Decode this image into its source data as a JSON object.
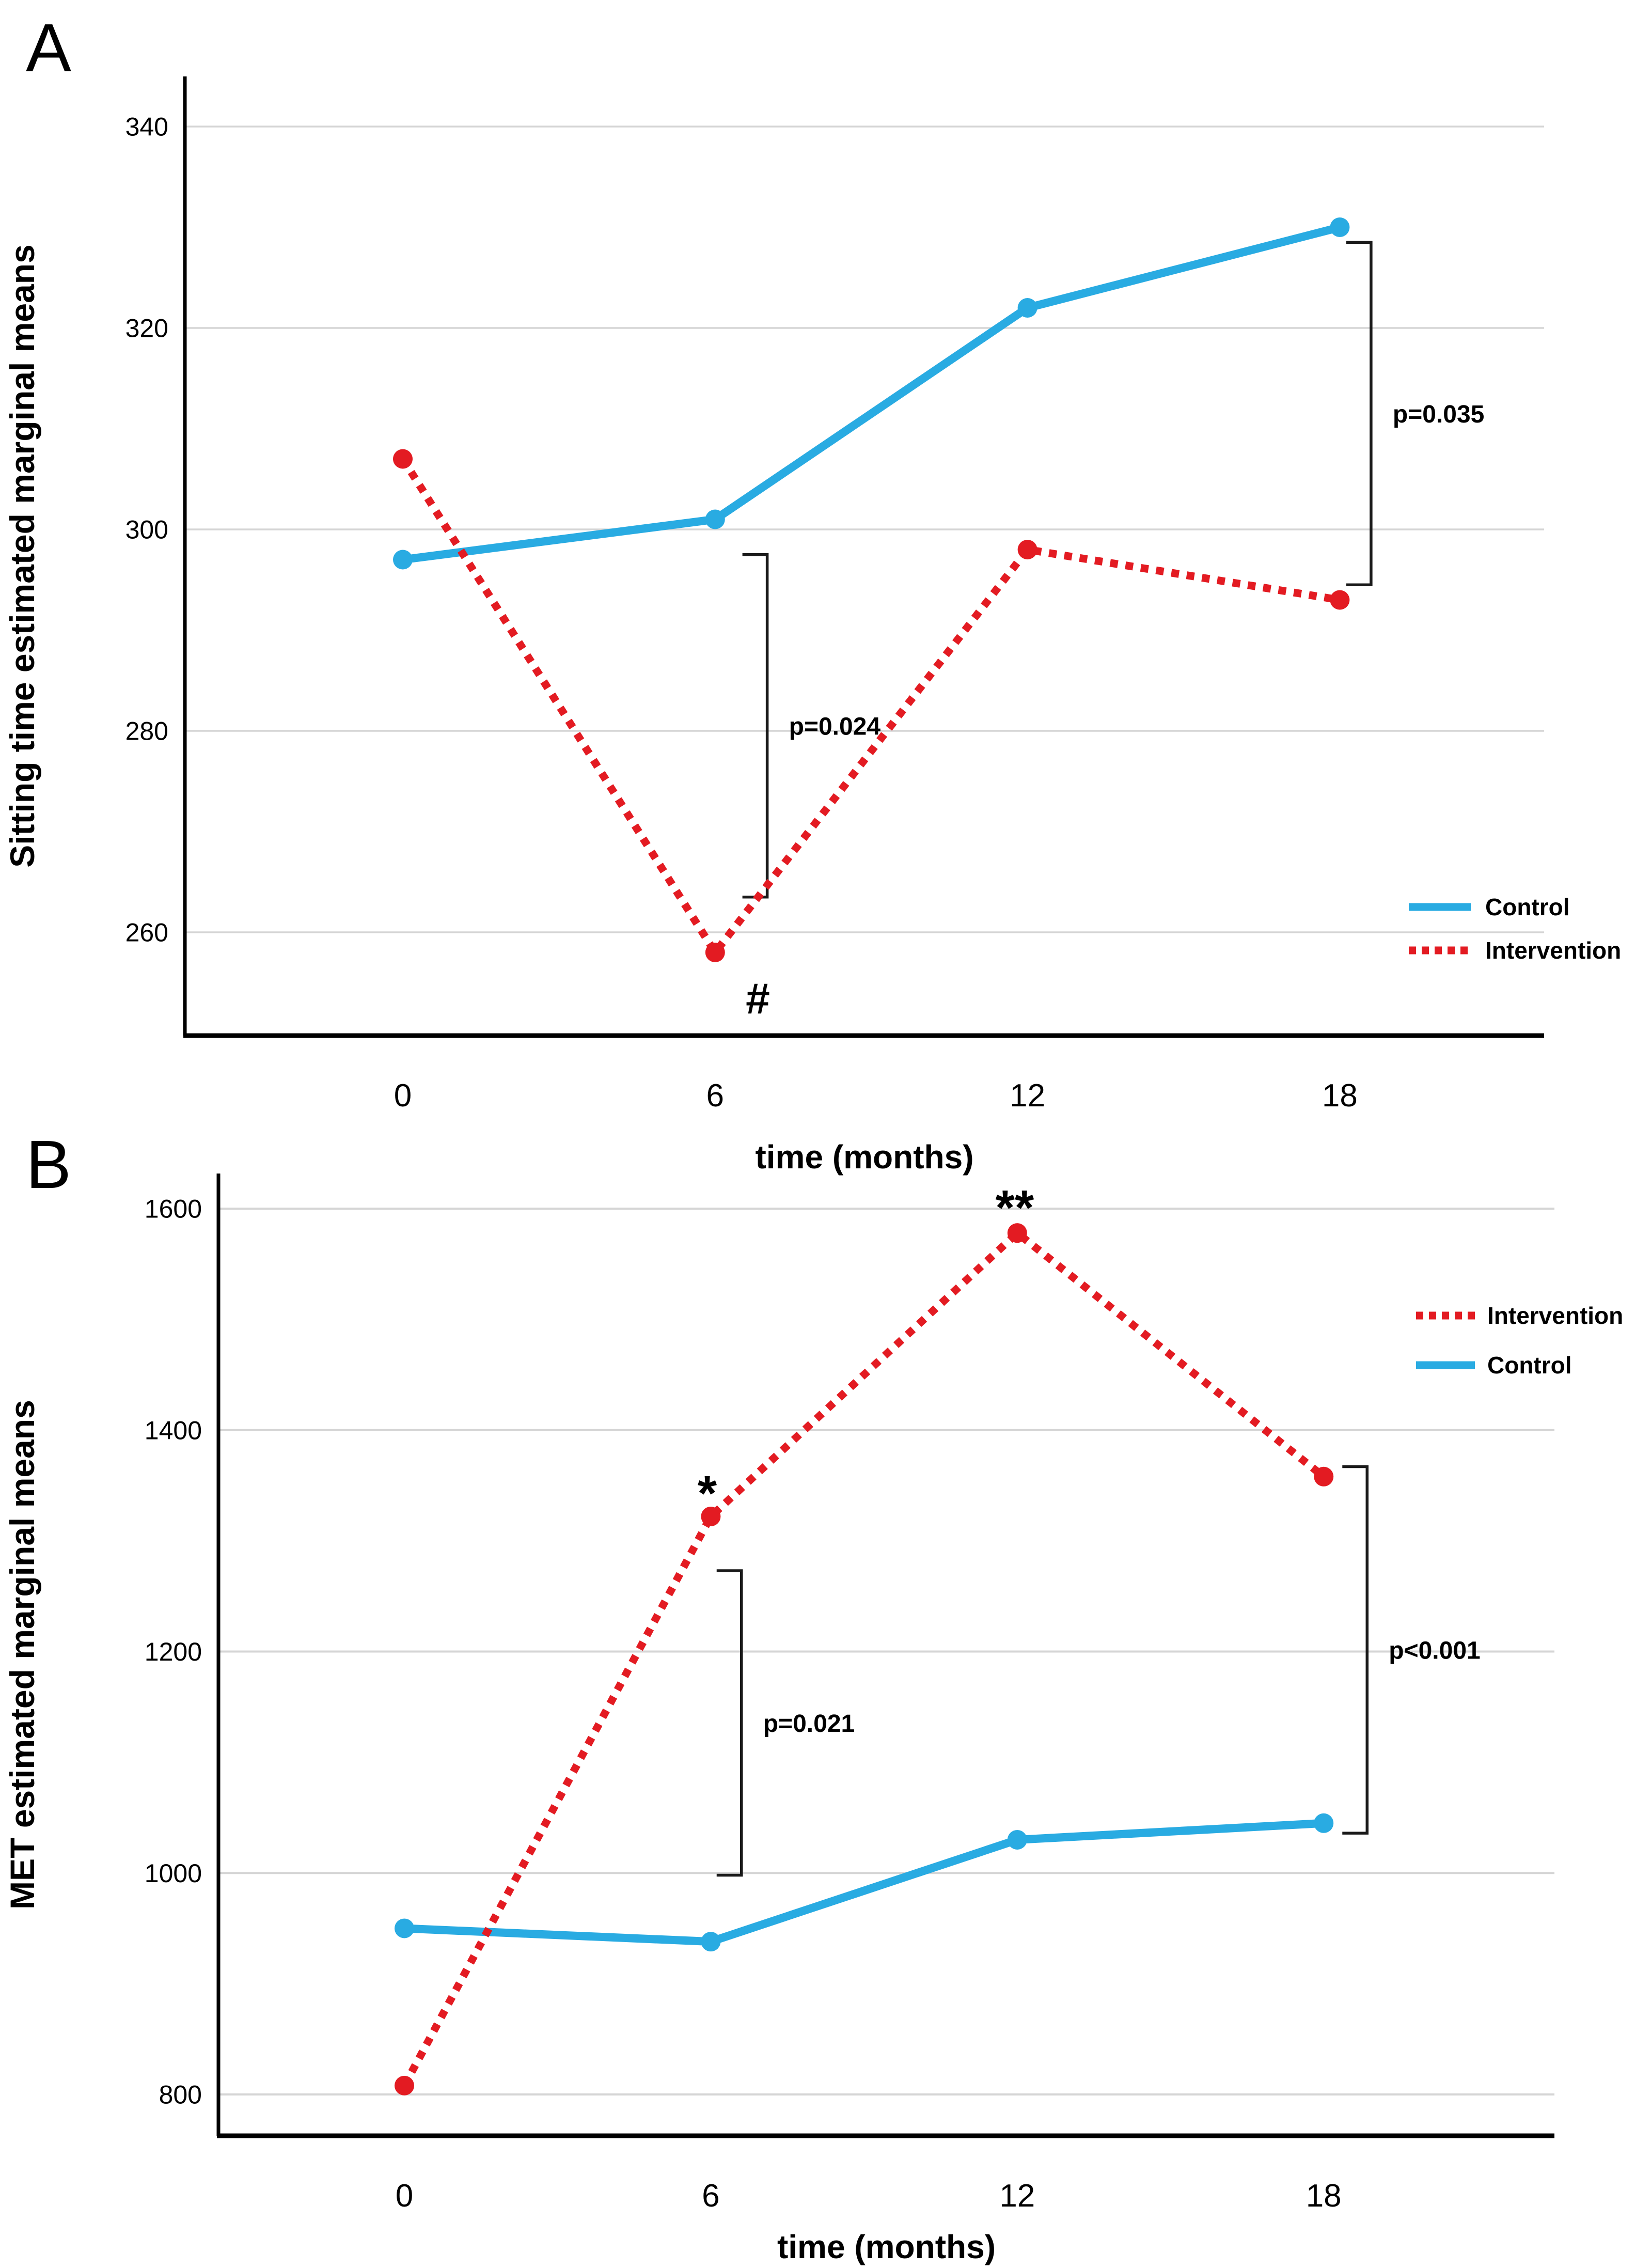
{
  "figure": {
    "background": "#ffffff",
    "accent_colors": {
      "control_blue": "#29ABE2",
      "intervention_red": "#E31B22",
      "gridline_gray": "#D5D5D5",
      "axis_black": "#000000"
    }
  },
  "chart_data": [
    {
      "type": "line",
      "panel_label": "A",
      "title": "",
      "xlabel": "time (months)",
      "ylabel": "Sitting time estimated marginal means",
      "x": [
        0,
        6,
        12,
        18
      ],
      "x_tick_labels": [
        "0",
        "6",
        "12",
        "18"
      ],
      "yticks": [
        260,
        280,
        300,
        320,
        340
      ],
      "ytick_labels": [
        "260",
        "280",
        "300",
        "320",
        "340"
      ],
      "ylim": [
        250,
        345
      ],
      "grid": true,
      "legend": {
        "position": "bottom-right",
        "entries": [
          "Control",
          "Intervention"
        ]
      },
      "series": [
        {
          "name": "Control",
          "color": "#29ABE2",
          "line_style": "solid",
          "values": [
            297,
            301,
            322,
            330
          ]
        },
        {
          "name": "Intervention",
          "color": "#E31B22",
          "line_style": "dotted",
          "values": [
            307,
            258,
            298,
            293
          ]
        }
      ],
      "significance_brackets": [
        {
          "label": "p=0.024",
          "x_months": 7.0,
          "y_top": 297.5,
          "y_bottom": 263.5
        },
        {
          "label": "p=0.035",
          "x_months": 18.6,
          "y_top": 328.5,
          "y_bottom": 294.5
        }
      ],
      "annotations": [
        {
          "text": "#",
          "x_months": 6.82,
          "y_value": 253.5
        }
      ]
    },
    {
      "type": "line",
      "panel_label": "B",
      "title": "",
      "xlabel": "time (months)",
      "ylabel": "MET estimated marginal means",
      "x": [
        0,
        6,
        12,
        18
      ],
      "x_tick_labels": [
        "0",
        "6",
        "12",
        "18"
      ],
      "yticks": [
        800,
        1000,
        1200,
        1400,
        1600
      ],
      "ytick_labels": [
        "800",
        "1000",
        "1200",
        "1400",
        "1600"
      ],
      "ylim": [
        763,
        1632
      ],
      "grid": true,
      "legend": {
        "position": "top-right",
        "entries": [
          "Intervention",
          "Control"
        ]
      },
      "series": [
        {
          "name": "Intervention",
          "color": "#E31B22",
          "line_style": "dotted",
          "values": [
            808,
            1322,
            1578,
            1358
          ]
        },
        {
          "name": "Control",
          "color": "#29ABE2",
          "line_style": "solid",
          "values": [
            950,
            938,
            1030,
            1045
          ]
        }
      ],
      "significance_brackets": [
        {
          "label": "p=0.021",
          "x_months": 6.6,
          "y_top": 1273,
          "y_bottom": 998
        },
        {
          "label": "p<0.001",
          "x_months": 18.85,
          "y_top": 1367,
          "y_bottom": 1036
        }
      ],
      "annotations": [
        {
          "text": "*",
          "x_months": 5.93,
          "y_value": 1350
        },
        {
          "text": "**",
          "x_months": 11.95,
          "y_value": 1608
        }
      ]
    }
  ]
}
